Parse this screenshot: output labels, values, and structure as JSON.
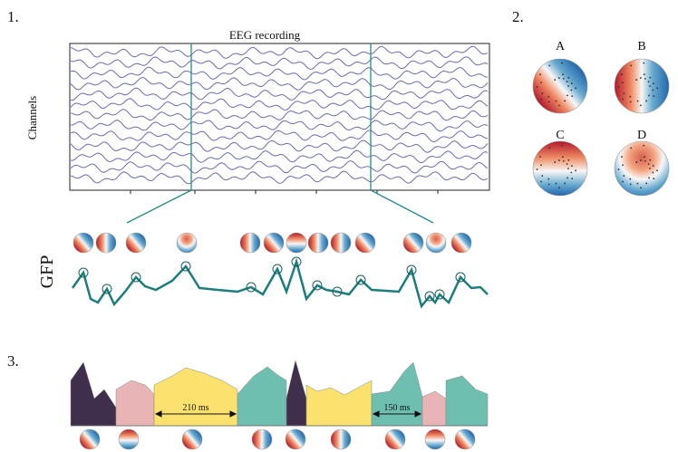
{
  "panel1": {
    "label": "1.",
    "title": "EEG recording",
    "y_label": "Channels",
    "gfp_label": "GFP"
  },
  "panel2": {
    "label": "2.",
    "maps": [
      "A",
      "B",
      "C",
      "D"
    ]
  },
  "panel3": {
    "label": "3.",
    "durations": [
      "210 ms",
      "150 ms"
    ]
  }
}
